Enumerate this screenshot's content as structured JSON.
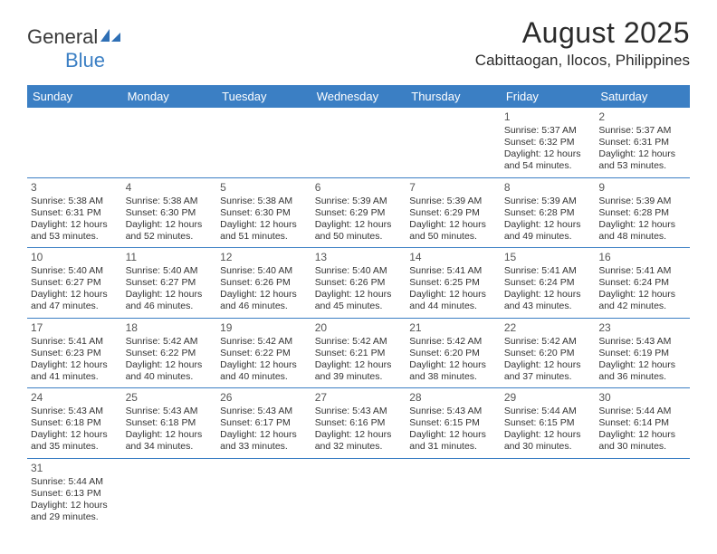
{
  "logo": {
    "text1": "General",
    "text2": "Blue"
  },
  "title": "August 2025",
  "location": "Cabittaogan, Ilocos, Philippines",
  "colors": {
    "header_bg": "#3b7fc4",
    "header_text": "#ffffff",
    "border": "#3b7fc4",
    "body_text": "#333333",
    "title_text": "#2b2b2b"
  },
  "day_headers": [
    "Sunday",
    "Monday",
    "Tuesday",
    "Wednesday",
    "Thursday",
    "Friday",
    "Saturday"
  ],
  "weeks": [
    [
      null,
      null,
      null,
      null,
      null,
      {
        "n": "1",
        "sr": "5:37 AM",
        "ss": "6:32 PM",
        "dl": "12 hours and 54 minutes."
      },
      {
        "n": "2",
        "sr": "5:37 AM",
        "ss": "6:31 PM",
        "dl": "12 hours and 53 minutes."
      }
    ],
    [
      {
        "n": "3",
        "sr": "5:38 AM",
        "ss": "6:31 PM",
        "dl": "12 hours and 53 minutes."
      },
      {
        "n": "4",
        "sr": "5:38 AM",
        "ss": "6:30 PM",
        "dl": "12 hours and 52 minutes."
      },
      {
        "n": "5",
        "sr": "5:38 AM",
        "ss": "6:30 PM",
        "dl": "12 hours and 51 minutes."
      },
      {
        "n": "6",
        "sr": "5:39 AM",
        "ss": "6:29 PM",
        "dl": "12 hours and 50 minutes."
      },
      {
        "n": "7",
        "sr": "5:39 AM",
        "ss": "6:29 PM",
        "dl": "12 hours and 50 minutes."
      },
      {
        "n": "8",
        "sr": "5:39 AM",
        "ss": "6:28 PM",
        "dl": "12 hours and 49 minutes."
      },
      {
        "n": "9",
        "sr": "5:39 AM",
        "ss": "6:28 PM",
        "dl": "12 hours and 48 minutes."
      }
    ],
    [
      {
        "n": "10",
        "sr": "5:40 AM",
        "ss": "6:27 PM",
        "dl": "12 hours and 47 minutes."
      },
      {
        "n": "11",
        "sr": "5:40 AM",
        "ss": "6:27 PM",
        "dl": "12 hours and 46 minutes."
      },
      {
        "n": "12",
        "sr": "5:40 AM",
        "ss": "6:26 PM",
        "dl": "12 hours and 46 minutes."
      },
      {
        "n": "13",
        "sr": "5:40 AM",
        "ss": "6:26 PM",
        "dl": "12 hours and 45 minutes."
      },
      {
        "n": "14",
        "sr": "5:41 AM",
        "ss": "6:25 PM",
        "dl": "12 hours and 44 minutes."
      },
      {
        "n": "15",
        "sr": "5:41 AM",
        "ss": "6:24 PM",
        "dl": "12 hours and 43 minutes."
      },
      {
        "n": "16",
        "sr": "5:41 AM",
        "ss": "6:24 PM",
        "dl": "12 hours and 42 minutes."
      }
    ],
    [
      {
        "n": "17",
        "sr": "5:41 AM",
        "ss": "6:23 PM",
        "dl": "12 hours and 41 minutes."
      },
      {
        "n": "18",
        "sr": "5:42 AM",
        "ss": "6:22 PM",
        "dl": "12 hours and 40 minutes."
      },
      {
        "n": "19",
        "sr": "5:42 AM",
        "ss": "6:22 PM",
        "dl": "12 hours and 40 minutes."
      },
      {
        "n": "20",
        "sr": "5:42 AM",
        "ss": "6:21 PM",
        "dl": "12 hours and 39 minutes."
      },
      {
        "n": "21",
        "sr": "5:42 AM",
        "ss": "6:20 PM",
        "dl": "12 hours and 38 minutes."
      },
      {
        "n": "22",
        "sr": "5:42 AM",
        "ss": "6:20 PM",
        "dl": "12 hours and 37 minutes."
      },
      {
        "n": "23",
        "sr": "5:43 AM",
        "ss": "6:19 PM",
        "dl": "12 hours and 36 minutes."
      }
    ],
    [
      {
        "n": "24",
        "sr": "5:43 AM",
        "ss": "6:18 PM",
        "dl": "12 hours and 35 minutes."
      },
      {
        "n": "25",
        "sr": "5:43 AM",
        "ss": "6:18 PM",
        "dl": "12 hours and 34 minutes."
      },
      {
        "n": "26",
        "sr": "5:43 AM",
        "ss": "6:17 PM",
        "dl": "12 hours and 33 minutes."
      },
      {
        "n": "27",
        "sr": "5:43 AM",
        "ss": "6:16 PM",
        "dl": "12 hours and 32 minutes."
      },
      {
        "n": "28",
        "sr": "5:43 AM",
        "ss": "6:15 PM",
        "dl": "12 hours and 31 minutes."
      },
      {
        "n": "29",
        "sr": "5:44 AM",
        "ss": "6:15 PM",
        "dl": "12 hours and 30 minutes."
      },
      {
        "n": "30",
        "sr": "5:44 AM",
        "ss": "6:14 PM",
        "dl": "12 hours and 30 minutes."
      }
    ],
    [
      {
        "n": "31",
        "sr": "5:44 AM",
        "ss": "6:13 PM",
        "dl": "12 hours and 29 minutes."
      },
      null,
      null,
      null,
      null,
      null,
      null
    ]
  ],
  "labels": {
    "sunrise": "Sunrise:",
    "sunset": "Sunset:",
    "daylight": "Daylight:"
  }
}
